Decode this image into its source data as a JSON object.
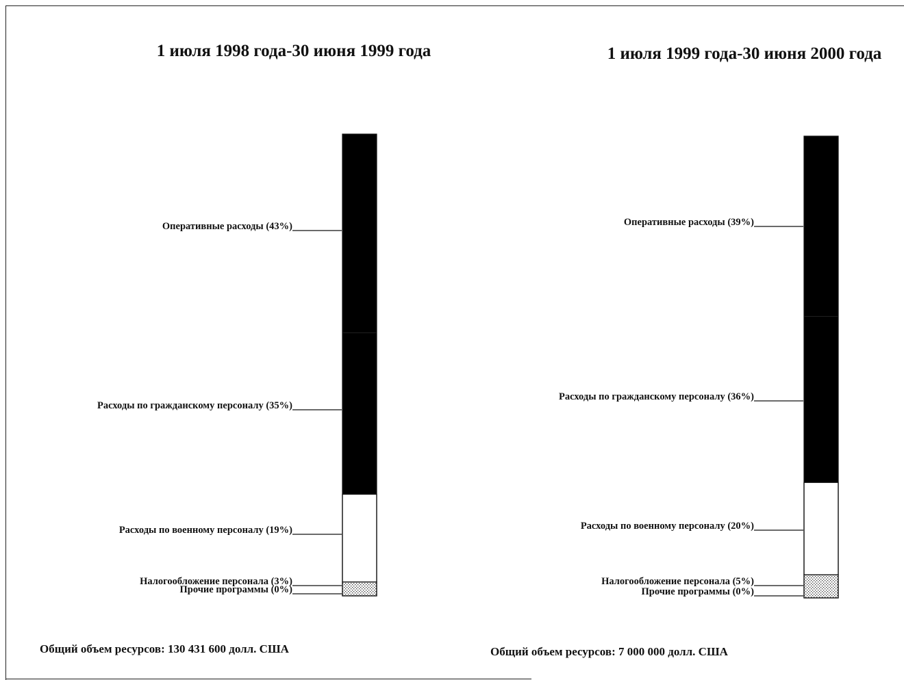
{
  "chart_data": [
    {
      "type": "bar",
      "stacked": true,
      "title": "1 июля 1998 года-30 июня 1999 года",
      "unit": "%",
      "segments": [
        {
          "label": "Оперативные расходы (43%)",
          "value": 43,
          "fill": "black"
        },
        {
          "label": "Расходы по гражданскому персоналу (35%)",
          "value": 35,
          "fill": "black"
        },
        {
          "label": "Расходы по военному персоналу (19%)",
          "value": 19,
          "fill": "white"
        },
        {
          "label": "Налогообложение персонала (3%)",
          "value": 3,
          "fill": "stipple"
        },
        {
          "label": "Прочие программы (0%)",
          "value": 0,
          "fill": "white"
        }
      ],
      "total_label": "Общий объем ресурсов: 130 431 600 долл. США"
    },
    {
      "type": "bar",
      "stacked": true,
      "title": "1 июля 1999 года-30 июня 2000 года",
      "unit": "%",
      "segments": [
        {
          "label": "Оперативные расходы (39%)",
          "value": 39,
          "fill": "black"
        },
        {
          "label": "Расходы по гражданскому персоналу (36%)",
          "value": 36,
          "fill": "black"
        },
        {
          "label": "Расходы по военному персоналу (20%)",
          "value": 20,
          "fill": "white"
        },
        {
          "label": "Налогообложение персонала (5%)",
          "value": 5,
          "fill": "stipple"
        },
        {
          "label": "Прочие программы (0%)",
          "value": 0,
          "fill": "white"
        }
      ],
      "total_label": "Общий объем ресурсов: 7 000 000 долл. США"
    }
  ],
  "colors": {
    "black": "#000000",
    "white": "#ffffff",
    "stipple": "#b8b8b8",
    "line": "#111111"
  }
}
